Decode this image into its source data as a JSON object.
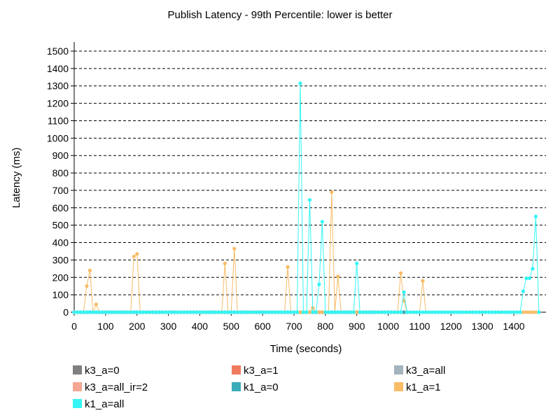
{
  "chart_data": {
    "type": "line",
    "title": "Publish Latency - 99th Percentile: lower is better",
    "xlabel": "Time (seconds)",
    "ylabel": "Latency (ms)",
    "xlim": [
      0,
      1500
    ],
    "ylim": [
      0,
      1500
    ],
    "x_ticks": [
      0,
      100,
      200,
      300,
      400,
      500,
      600,
      700,
      800,
      900,
      1000,
      1100,
      1200,
      1300,
      1400
    ],
    "y_ticks": [
      0,
      100,
      200,
      300,
      400,
      500,
      600,
      700,
      800,
      900,
      1000,
      1100,
      1200,
      1300,
      1400,
      1500
    ],
    "grid": "horizontal-dashed",
    "legend_position": "bottom",
    "sample_interval": 10,
    "series": [
      {
        "name": "k3_a=0",
        "color": "#7f7f7f",
        "x_end": 1060,
        "peaks": []
      },
      {
        "name": "k3_a=1",
        "color": "#ef7b5f",
        "x_end": 1060,
        "peaks": []
      },
      {
        "name": "k3_a=all",
        "color": "#a3b4bd",
        "x_end": 1060,
        "peaks": []
      },
      {
        "name": "k3_a=all_ir=2",
        "color": "#f4a793",
        "x_end": 1060,
        "peaks": []
      },
      {
        "name": "k1_a=0",
        "color": "#3aacb9",
        "x_end": 1060,
        "peaks": []
      },
      {
        "name": "k1_a=1",
        "color": "#f8bb66",
        "x_end": 1480,
        "peaks": [
          [
            40,
            150
          ],
          [
            50,
            240
          ],
          [
            70,
            45
          ],
          [
            190,
            320
          ],
          [
            200,
            335
          ],
          [
            480,
            280
          ],
          [
            510,
            365
          ],
          [
            680,
            260
          ],
          [
            760,
            25
          ],
          [
            820,
            690
          ],
          [
            840,
            205
          ],
          [
            1040,
            225
          ],
          [
            1050,
            65
          ],
          [
            1110,
            180
          ]
        ]
      },
      {
        "name": "k1_a=all",
        "color": "#33f5f5",
        "x_end": 1480,
        "peaks": [
          [
            720,
            1315
          ],
          [
            750,
            645
          ],
          [
            780,
            160
          ],
          [
            790,
            520
          ],
          [
            900,
            280
          ],
          [
            1050,
            115
          ],
          [
            1430,
            120
          ],
          [
            1440,
            195
          ],
          [
            1450,
            195
          ],
          [
            1460,
            250
          ],
          [
            1470,
            550
          ]
        ]
      }
    ]
  }
}
